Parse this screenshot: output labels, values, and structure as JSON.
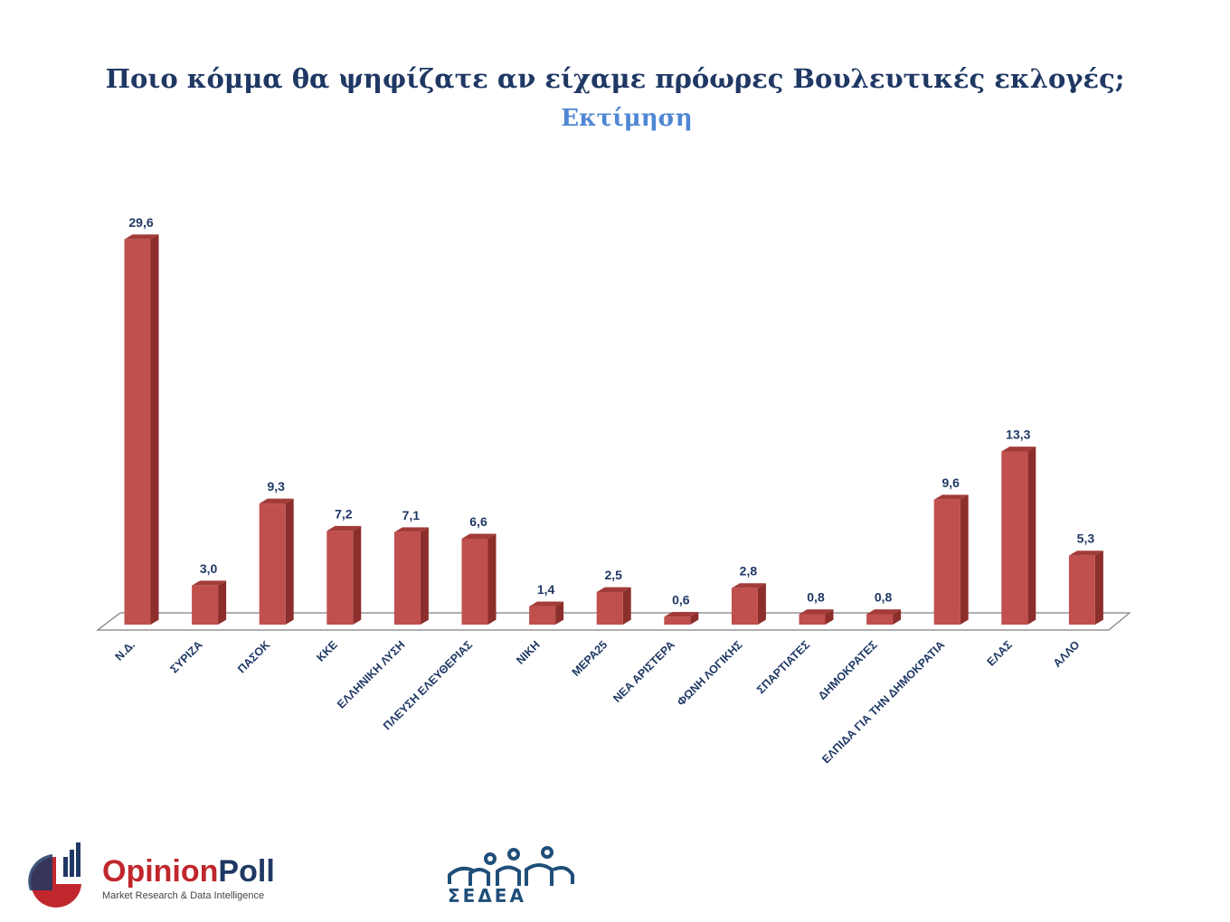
{
  "header": {
    "title": "Ποιο κόμμα θα ψηφίζατε αν είχαμε πρόωρες Βουλευτικές εκλογές;",
    "subtitle": "Εκτίμηση"
  },
  "chart_data": {
    "type": "bar",
    "title": "Ποιο κόμμα θα ψηφίζατε αν είχαμε πρόωρες Βουλευτικές εκλογές;",
    "subtitle": "Εκτίμηση",
    "categories": [
      "Ν.Δ.",
      "ΣΥΡΙΖΑ",
      "ΠΑΣΟΚ",
      "ΚΚΕ",
      "ΕΛΛΗΝΙΚΗ ΛΥΣΗ",
      "ΠΛΕΥΣΗ ΕΛΕΥΘΕΡΙΑΣ",
      "ΝΙΚΗ",
      "ΜΕΡΑ25",
      "ΝΕΑ ΑΡΙΣΤΕΡΑ",
      "ΦΩΝΗ ΛΟΓΙΚΗΣ",
      "ΣΠΑΡΤΙΑΤΕΣ",
      "ΔΗΜΟΚΡΑΤΕΣ",
      "ΕΛΠΙΔΑ ΓΙΑ ΤΗΝ ΔΗΜΟΚΡΑΤΙΑ",
      "ΕΛΑΣ",
      "ΑΛΛΟ"
    ],
    "values": [
      29.6,
      3.0,
      9.3,
      7.2,
      7.1,
      6.6,
      1.4,
      2.5,
      0.6,
      2.8,
      0.8,
      0.8,
      9.6,
      13.3,
      5.3
    ],
    "value_labels": [
      "29,6",
      "3,0",
      "9,3",
      "7,2",
      "7,1",
      "6,6",
      "1,4",
      "2,5",
      "0,6",
      "2,8",
      "0,8",
      "0,8",
      "9,6",
      "13,3",
      "5,3"
    ],
    "xlabel": "",
    "ylabel": "",
    "ylim": [
      0,
      30
    ],
    "grid": false,
    "legend": "none",
    "style": "3d",
    "colors": {
      "bar_front": "#c0504d",
      "bar_side": "#8c2e2b",
      "bar_top": "#a33c39",
      "value_label": "#1f3864",
      "category_label": "#1f3864"
    }
  },
  "logos": {
    "opinionpoll": {
      "name": "OpinionPoll",
      "tagline": "Market Research & Data Intelligence",
      "colors": {
        "opinion": "#c0272d",
        "poll": "#1f3864"
      }
    },
    "sedea": {
      "name": "ΣΕΔΕΑ",
      "color": "#1f4e79"
    }
  }
}
